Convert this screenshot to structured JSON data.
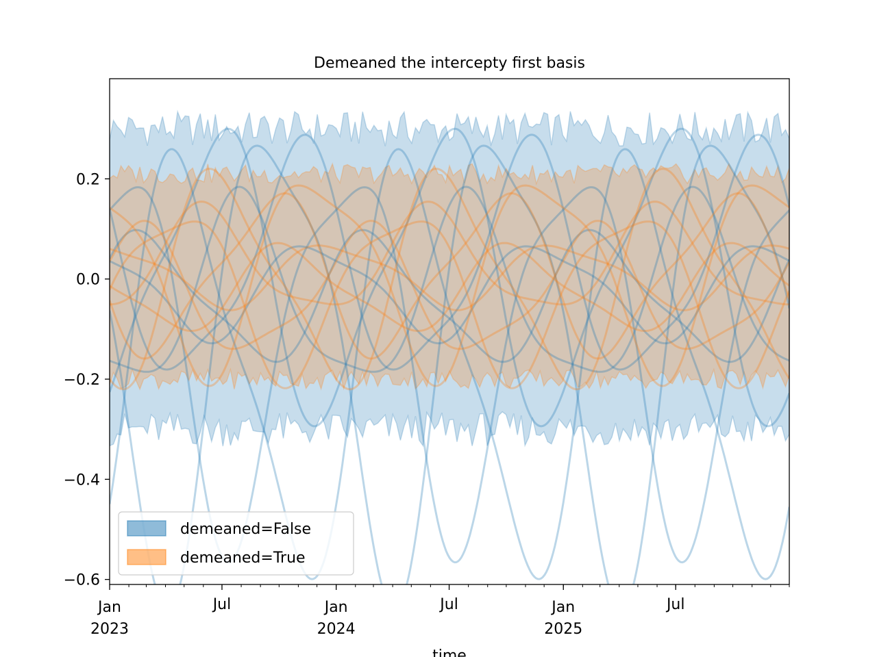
{
  "chart_data": {
    "type": "line",
    "title": "Demeaned the intercepty first basis",
    "xlabel": "time",
    "ylabel": "",
    "xlim": [
      "2023-01-01",
      "2025-12-31"
    ],
    "ylim": [
      -0.61,
      0.4
    ],
    "yticks": [
      -0.6,
      -0.4,
      -0.2,
      0.0,
      0.2
    ],
    "ytick_labels": [
      "−0.6",
      "−0.4",
      "−0.2",
      "0.0",
      "0.2"
    ],
    "xticks": [
      {
        "date": "2023-01-01",
        "label": [
          "Jan",
          "2023"
        ]
      },
      {
        "date": "2023-07-01",
        "label": [
          "Jul"
        ]
      },
      {
        "date": "2024-01-01",
        "label": [
          "Jan",
          "2024"
        ]
      },
      {
        "date": "2024-07-01",
        "label": [
          "Jul"
        ]
      },
      {
        "date": "2025-01-01",
        "label": [
          "Jan",
          "2025"
        ]
      },
      {
        "date": "2025-07-01",
        "label": [
          "Jul"
        ]
      }
    ],
    "legend": {
      "position": "lower-left",
      "entries": [
        "demeaned=False",
        "demeaned=True"
      ]
    },
    "grid": false,
    "series": [
      {
        "name": "demeaned=False",
        "color": "#1f77b4",
        "band": {
          "upper_mean": 0.3,
          "upper_amp": 0.035,
          "lower_mean": -0.3,
          "lower_amp": 0.035
        },
        "inner_band": {
          "upper": 0.19,
          "lower": -0.19
        },
        "curves": [
          {
            "amplitude": 0.39,
            "offset": -0.17,
            "phase_month": 1.0
          },
          {
            "amplitude": 0.44,
            "offset": -0.12,
            "phase_month": 5.8
          },
          {
            "amplitude": 0.36,
            "offset": -0.12,
            "phase_month": 9.5
          },
          {
            "amplitude": 0.27,
            "offset": 0.01,
            "phase_month": 2.5
          },
          {
            "amplitude": 0.22,
            "offset": 0.02,
            "phase_month": 7.0
          },
          {
            "amplitude": 0.18,
            "offset": -0.04,
            "phase_month": 4.0
          },
          {
            "amplitude": 0.12,
            "offset": -0.04,
            "phase_month": 11.0
          },
          {
            "amplitude": 0.09,
            "offset": -0.02,
            "phase_month": 8.0
          }
        ]
      },
      {
        "name": "demeaned=True",
        "color": "#ff7f0e",
        "band": {
          "upper_mean": 0.21,
          "upper_amp": 0.02,
          "lower_mean": -0.2,
          "lower_amp": 0.02
        },
        "curves": [
          {
            "amplitude": 0.2,
            "offset": 0.0,
            "phase_month": 3.0
          },
          {
            "amplitude": 0.19,
            "offset": 0.02,
            "phase_month": 8.0
          },
          {
            "amplitude": 0.16,
            "offset": -0.02,
            "phase_month": 0.5
          },
          {
            "amplitude": 0.15,
            "offset": 0.01,
            "phase_month": 5.5
          },
          {
            "amplitude": 0.12,
            "offset": -0.03,
            "phase_month": 10.5
          },
          {
            "amplitude": 0.1,
            "offset": 0.03,
            "phase_month": 2.0
          },
          {
            "amplitude": 0.08,
            "offset": -0.02,
            "phase_month": 6.5
          },
          {
            "amplitude": 0.06,
            "offset": 0.01,
            "phase_month": 9.0
          }
        ]
      }
    ]
  }
}
